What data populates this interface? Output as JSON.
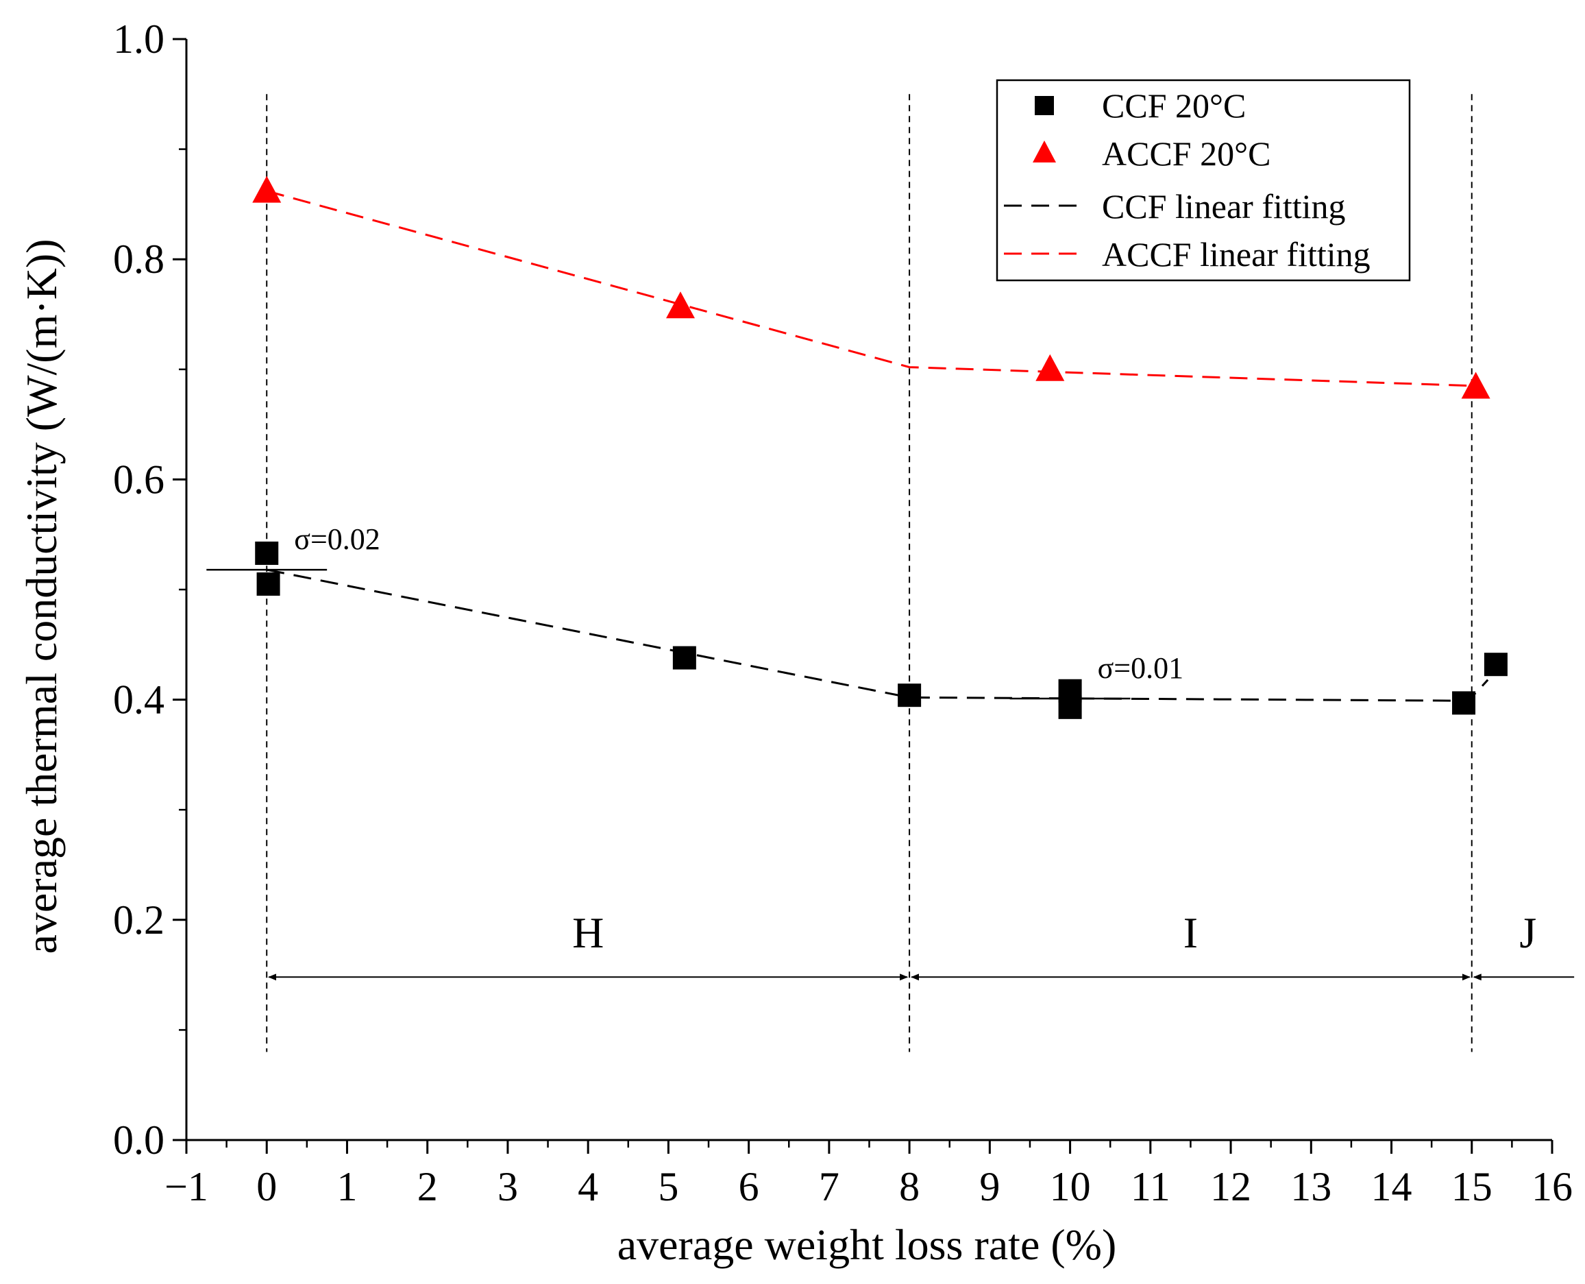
{
  "chart_data": {
    "type": "scatter",
    "title": "",
    "xlabel": "average weight loss rate (%)",
    "ylabel": "average thermal conductivity (W/(m·K))",
    "xlim": [
      -1,
      16
    ],
    "ylim": [
      0.0,
      1.0
    ],
    "x_ticks": [
      -1,
      0,
      1,
      2,
      3,
      4,
      5,
      6,
      7,
      8,
      9,
      10,
      11,
      12,
      13,
      14,
      15,
      16
    ],
    "x_tick_labels": [
      "−1",
      "0",
      "1",
      "2",
      "3",
      "4",
      "5",
      "6",
      "7",
      "8",
      "9",
      "10",
      "11",
      "12",
      "13",
      "14",
      "15",
      "16"
    ],
    "y_ticks": [
      0.0,
      0.2,
      0.4,
      0.6,
      0.8,
      1.0
    ],
    "y_tick_labels": [
      "0.0",
      "0.2",
      "0.4",
      "0.6",
      "0.8",
      "1.0"
    ],
    "series": [
      {
        "name": "CCF 20°C",
        "marker": "square",
        "color": "#000000",
        "points": [
          [
            0.0,
            0.533
          ],
          [
            0.02,
            0.505
          ],
          [
            5.2,
            0.438
          ],
          [
            8.0,
            0.404
          ],
          [
            10.0,
            0.408
          ],
          [
            10.0,
            0.393
          ],
          [
            14.9,
            0.397
          ],
          [
            15.3,
            0.432
          ]
        ]
      },
      {
        "name": "ACCF 20°C",
        "marker": "triangle",
        "color": "#ff0000",
        "points": [
          [
            0.0,
            0.862
          ],
          [
            5.15,
            0.757
          ],
          [
            9.75,
            0.7
          ],
          [
            15.05,
            0.684
          ]
        ]
      },
      {
        "name": "CCF linear fitting",
        "style": "dashed",
        "color": "#000000",
        "points": [
          [
            0.0,
            0.518
          ],
          [
            8.0,
            0.402
          ],
          [
            14.9,
            0.399
          ],
          [
            15.05,
            0.406
          ],
          [
            15.2,
            0.418
          ]
        ]
      },
      {
        "name": "ACCF linear fitting",
        "style": "dashed",
        "color": "#ff0000",
        "points": [
          [
            0.0,
            0.862
          ],
          [
            8.0,
            0.702
          ],
          [
            15.05,
            0.685
          ]
        ]
      }
    ],
    "region_boundaries": [
      0,
      8,
      15
    ],
    "regions": [
      {
        "label": "H",
        "from": 0,
        "to": 8
      },
      {
        "label": "I",
        "from": 8,
        "to": 15
      },
      {
        "label": "J",
        "from": 15,
        "to": 16.3
      }
    ],
    "error_bars": [
      {
        "x": 0.0,
        "y": 0.518,
        "half_width": 0.75,
        "label": "σ=0.02"
      },
      {
        "x": 10.0,
        "y": 0.401,
        "half_width": 0.75,
        "label": "σ=0.01"
      }
    ],
    "legend": {
      "position": "top-right"
    }
  }
}
